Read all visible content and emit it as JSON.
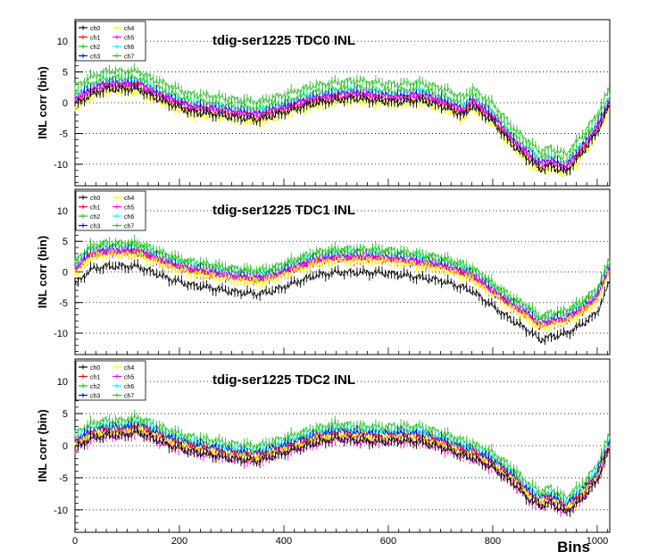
{
  "figure": {
    "x_axis_label": "Bins",
    "y_axis_label": "INL corr (bin)",
    "x_tick_labels": [
      "0",
      "200",
      "400",
      "600",
      "800",
      "1000"
    ]
  },
  "legend": {
    "entries": [
      {
        "name": "ch0",
        "color": "#000000"
      },
      {
        "name": "ch1",
        "color": "#ff0000"
      },
      {
        "name": "ch2",
        "color": "#00cc00"
      },
      {
        "name": "ch3",
        "color": "#0000ff"
      },
      {
        "name": "ch4",
        "color": "#ffff00"
      },
      {
        "name": "ch5",
        "color": "#ff00ff"
      },
      {
        "name": "ch6",
        "color": "#00ffff"
      },
      {
        "name": "ch7",
        "color": "#33bb33"
      }
    ]
  },
  "chart_data": [
    {
      "type": "line",
      "title": "tdig-ser1225 TDC0 INL",
      "xlabel": "",
      "ylabel": "INL corr (bin)",
      "xlim": [
        0,
        1024
      ],
      "ylim": [
        -13.5,
        13.5
      ],
      "yticks": [
        "-10",
        "-5",
        "0",
        "5",
        "10"
      ],
      "grid": "horizontal dotted",
      "legend_position": "top-left",
      "x": [
        0,
        30,
        60,
        90,
        120,
        150,
        180,
        220,
        260,
        300,
        350,
        380,
        420,
        460,
        500,
        540,
        580,
        620,
        660,
        700,
        745,
        760,
        800,
        840,
        870,
        890,
        910,
        940,
        970,
        1000,
        1024
      ],
      "envelope_low": [
        -1,
        0.5,
        1.5,
        1.5,
        1.5,
        0.2,
        -0.8,
        -2.2,
        -2.5,
        -3.0,
        -3.5,
        -2.8,
        -1.8,
        -0.8,
        -0.3,
        0,
        -0.4,
        -0.6,
        -0.3,
        -1.2,
        -2.8,
        -1.2,
        -3.8,
        -7.8,
        -10.0,
        -11.5,
        -11.0,
        -12.0,
        -9.0,
        -5.5,
        -1.2
      ],
      "series": [
        {
          "name": "ch0",
          "offset": -0.9
        },
        {
          "name": "ch1",
          "offset": -0.4
        },
        {
          "name": "ch2",
          "offset": 0.9
        },
        {
          "name": "ch3",
          "offset": 0.0
        },
        {
          "name": "ch4",
          "offset": -1.3
        },
        {
          "name": "ch5",
          "offset": -0.2
        },
        {
          "name": "ch6",
          "offset": 0.3
        },
        {
          "name": "ch7",
          "offset": 2.0
        }
      ]
    },
    {
      "type": "line",
      "title": "tdig-ser1225 TDC1 INL",
      "xlabel": "",
      "ylabel": "INL corr (bin)",
      "xlim": [
        0,
        1024
      ],
      "ylim": [
        -13.5,
        13.5
      ],
      "yticks": [
        "-10",
        "-5",
        "0",
        "5",
        "10"
      ],
      "grid": "horizontal dotted",
      "legend_position": "top-left",
      "x": [
        0,
        30,
        60,
        90,
        120,
        150,
        180,
        220,
        260,
        300,
        350,
        380,
        420,
        460,
        500,
        540,
        580,
        620,
        660,
        700,
        745,
        760,
        800,
        840,
        870,
        890,
        910,
        940,
        970,
        1000,
        1024
      ],
      "envelope_low": [
        -1.5,
        1.0,
        1.5,
        1.5,
        1.5,
        0.5,
        -0.5,
        -1.5,
        -2.0,
        -2.6,
        -3.0,
        -2.5,
        -1.2,
        0,
        0.5,
        0.5,
        0.5,
        0.2,
        -0.3,
        -0.8,
        -2.0,
        -2.5,
        -5.0,
        -7.5,
        -9.0,
        -10.5,
        -10.0,
        -9.5,
        -8.0,
        -6.0,
        -1.0
      ],
      "series": [
        {
          "name": "ch0",
          "offset": -2.2
        },
        {
          "name": "ch1",
          "offset": 0.1
        },
        {
          "name": "ch2",
          "offset": 1.2
        },
        {
          "name": "ch3",
          "offset": 0.3
        },
        {
          "name": "ch4",
          "offset": -0.3
        },
        {
          "name": "ch5",
          "offset": 0.2
        },
        {
          "name": "ch6",
          "offset": 0.6
        },
        {
          "name": "ch7",
          "offset": 1.6
        }
      ]
    },
    {
      "type": "line",
      "title": "tdig-ser1225 TDC2 INL",
      "xlabel": "Bins",
      "ylabel": "INL corr (bin)",
      "xlim": [
        0,
        1024
      ],
      "ylim": [
        -13.5,
        13.5
      ],
      "yticks": [
        "-10",
        "-5",
        "0",
        "5",
        "10"
      ],
      "grid": "horizontal dotted",
      "legend_position": "top-left",
      "x": [
        0,
        30,
        60,
        90,
        120,
        150,
        180,
        220,
        260,
        300,
        350,
        380,
        420,
        460,
        500,
        540,
        580,
        620,
        660,
        700,
        745,
        760,
        800,
        840,
        870,
        890,
        910,
        940,
        970,
        1000,
        1024
      ],
      "envelope_low": [
        -1,
        0.5,
        1.0,
        1.0,
        1.5,
        0.5,
        -0.5,
        -1.5,
        -2.0,
        -2.6,
        -3.0,
        -2.2,
        -1.2,
        -0.2,
        0.5,
        0.2,
        0,
        0.2,
        0,
        -0.8,
        -2.2,
        -2.5,
        -4.0,
        -6.5,
        -9.0,
        -10.0,
        -9.5,
        -11.0,
        -9.0,
        -6.0,
        -1.0
      ],
      "series": [
        {
          "name": "ch0",
          "offset": -1.0
        },
        {
          "name": "ch1",
          "offset": -0.3
        },
        {
          "name": "ch2",
          "offset": 0.6
        },
        {
          "name": "ch3",
          "offset": 0.1
        },
        {
          "name": "ch4",
          "offset": -0.7
        },
        {
          "name": "ch5",
          "offset": -1.1
        },
        {
          "name": "ch6",
          "offset": 0.4
        },
        {
          "name": "ch7",
          "offset": 1.3
        }
      ]
    }
  ]
}
